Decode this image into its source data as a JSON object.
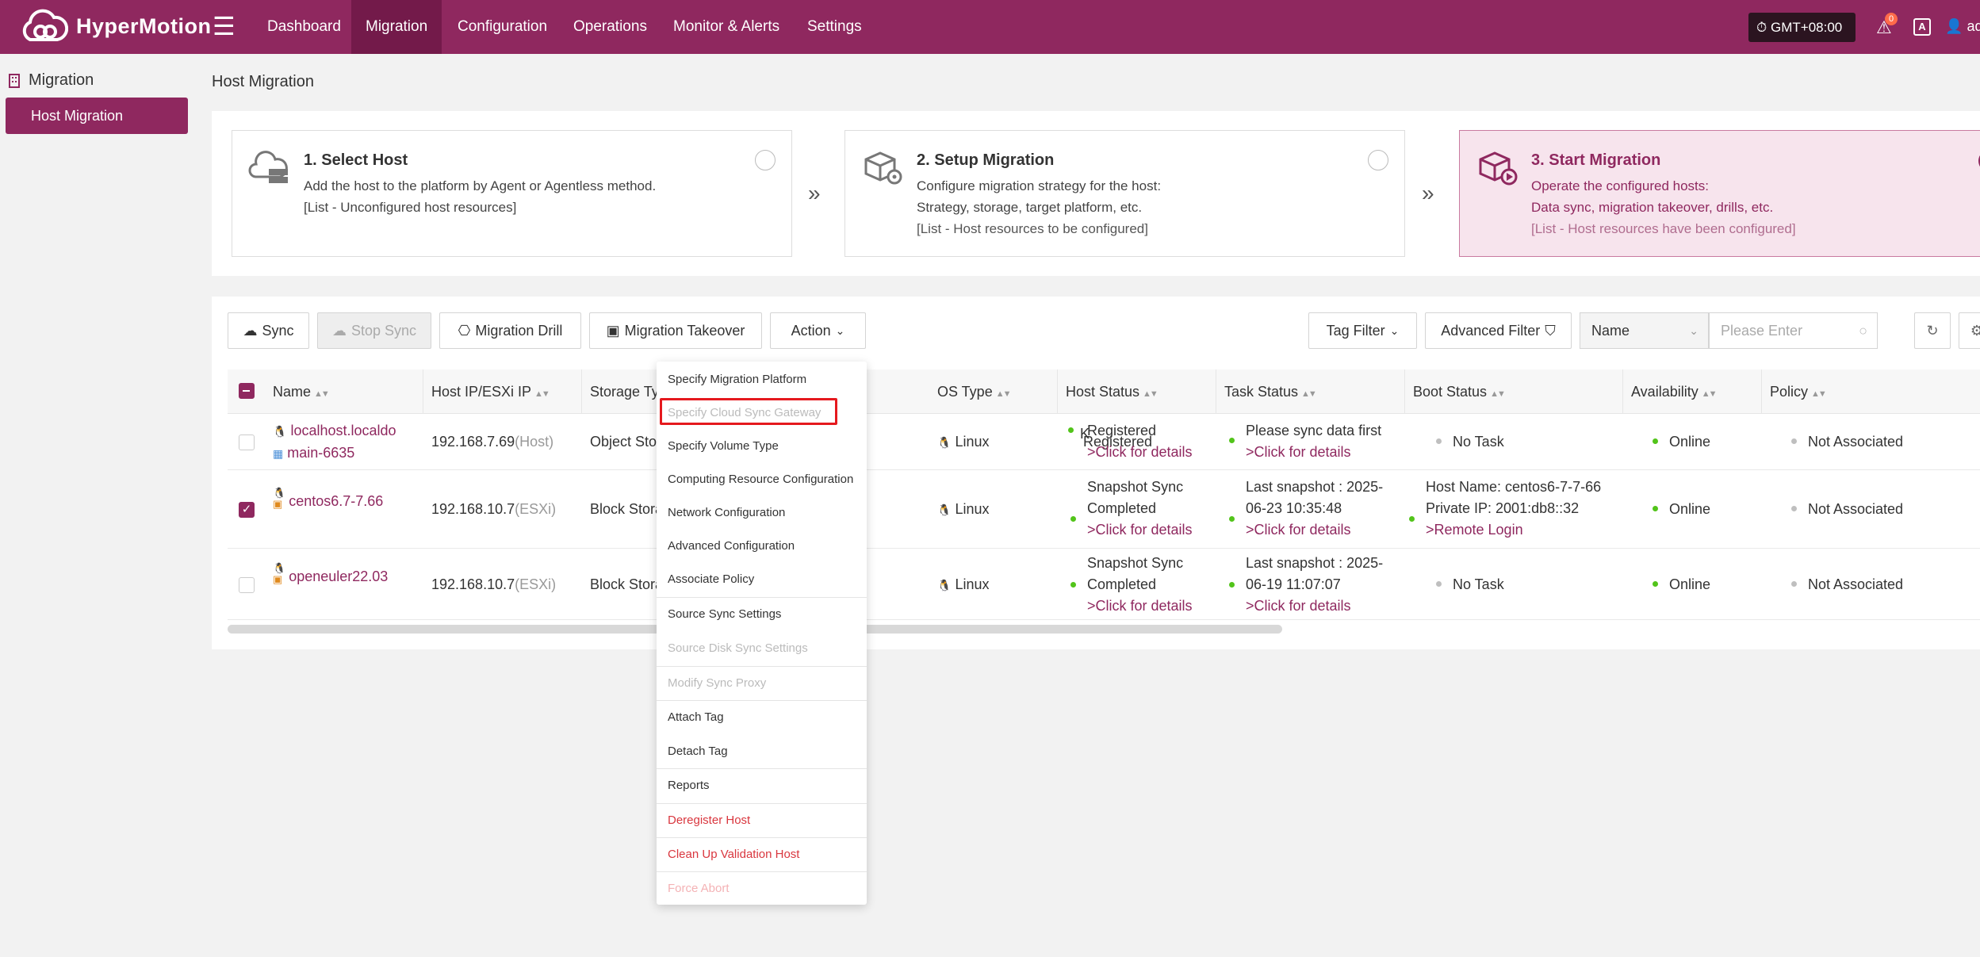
{
  "app": {
    "name": "HyperMotion"
  },
  "nav": {
    "items": [
      {
        "label": "Dashboard"
      },
      {
        "label": "Migration"
      },
      {
        "label": "Configuration"
      },
      {
        "label": "Operations"
      },
      {
        "label": "Monitor & Alerts"
      },
      {
        "label": "Settings"
      }
    ],
    "active": "Migration"
  },
  "header": {
    "timezone": "GMT+08:00",
    "alert_count": "0",
    "language_label": "A",
    "user": "adm"
  },
  "sidebar": {
    "title": "Migration",
    "items": [
      {
        "label": "Host Migration"
      }
    ]
  },
  "page": {
    "title": "Host Migration"
  },
  "steps": [
    {
      "title": "1. Select Host",
      "desc1": "Add the host to the platform by Agent or Agentless method.",
      "desc2": "[List - Unconfigured host resources]"
    },
    {
      "title": "2. Setup Migration",
      "desc1": "Configure migration strategy for the host:",
      "desc2": "Strategy, storage, target platform, etc.",
      "desc3": "[List - Host resources to be configured]"
    },
    {
      "title": "3. Start Migration",
      "desc1": "Operate the configured hosts:",
      "desc2": "Data sync, migration takeover, drills, etc.",
      "desc3": "[List - Host resources have been configured]"
    }
  ],
  "toolbar": {
    "sync": "Sync",
    "stop_sync": "Stop Sync",
    "migration_drill": "Migration Drill",
    "migration_takeover": "Migration Takeover",
    "action": "Action",
    "tag_filter": "Tag Filter",
    "advanced_filter": "Advanced Filter",
    "search_field": "Name",
    "search_placeholder": "Please Enter"
  },
  "table": {
    "columns": [
      "Name",
      "Host IP/ESXi IP",
      "Storage Ty",
      "OS Type",
      "Host Status",
      "Task Status",
      "Boot Status",
      "Availability",
      "Policy"
    ],
    "rows": [
      {
        "name1": "localhost.localdo",
        "name2": "main-6635",
        "ip": "192.168.7.69",
        "ip_type": "(Host)",
        "storage": "Object Sto",
        "extra": "K",
        "os": "Linux",
        "host_status1": "Registered",
        "host_status2": ">Click for details",
        "task_status1": "Please sync data first",
        "task_status2": ">Click for details",
        "boot_status1": "No Task",
        "availability": "Online",
        "policy": "Not Associated",
        "checked": false
      },
      {
        "name1": "centos6.7-7.66",
        "ip": "192.168.10.7",
        "ip_type": "(ESXi)",
        "storage": "Block Stora",
        "os": "Linux",
        "host_status1": "Snapshot Sync",
        "host_status2": "Completed",
        "host_status3": ">Click for details",
        "task_status1": "Last snapshot : 2025-",
        "task_status2": "06-23 10:35:48",
        "task_status3": ">Click for details",
        "boot_status1": "Host Name: centos6-7-7-66",
        "boot_status2": "Private IP: 2001:db8::32",
        "boot_status3": ">Remote Login",
        "availability": "Online",
        "policy": "Not Associated",
        "checked": true
      },
      {
        "name1": "openeuler22.03",
        "ip": "192.168.10.7",
        "ip_type": "(ESXi)",
        "storage": "Block Stora",
        "os": "Linux",
        "host_status1": "Snapshot Sync",
        "host_status2": "Completed",
        "host_status3": ">Click for details",
        "task_status1": "Last snapshot : 2025-",
        "task_status2": "06-19 11:07:07",
        "task_status3": ">Click for details",
        "boot_status1": "No Task",
        "availability": "Online",
        "policy": "Not Associated",
        "checked": false
      }
    ]
  },
  "action_menu": {
    "items": [
      {
        "label": "Specify Migration Platform",
        "state": "normal"
      },
      {
        "label": "Specify Cloud Sync Gateway",
        "state": "disabled"
      },
      {
        "label": "Specify Volume Type",
        "state": "normal"
      },
      {
        "label": "Computing Resource Configuration",
        "state": "normal"
      },
      {
        "label": "Network Configuration",
        "state": "normal"
      },
      {
        "label": "Advanced Configuration",
        "state": "normal"
      },
      {
        "label": "Associate Policy",
        "state": "normal"
      },
      {
        "label": "Source Sync Settings",
        "state": "normal"
      },
      {
        "label": "Source Disk Sync Settings",
        "state": "disabled"
      },
      {
        "label": "Modify Sync Proxy",
        "state": "disabled"
      },
      {
        "label": "Attach Tag",
        "state": "normal"
      },
      {
        "label": "Detach Tag",
        "state": "normal"
      },
      {
        "label": "Reports",
        "state": "normal"
      },
      {
        "label": "Deregister Host",
        "state": "danger"
      },
      {
        "label": "Clean Up Validation Host",
        "state": "danger"
      },
      {
        "label": "Force Abort",
        "state": "danger-disabled"
      }
    ]
  },
  "colors": {
    "brand": "#8f285f",
    "nav_active": "#731a4a",
    "online": "#52c41a",
    "danger": "#d9363e",
    "highlight": "#e5191e"
  }
}
